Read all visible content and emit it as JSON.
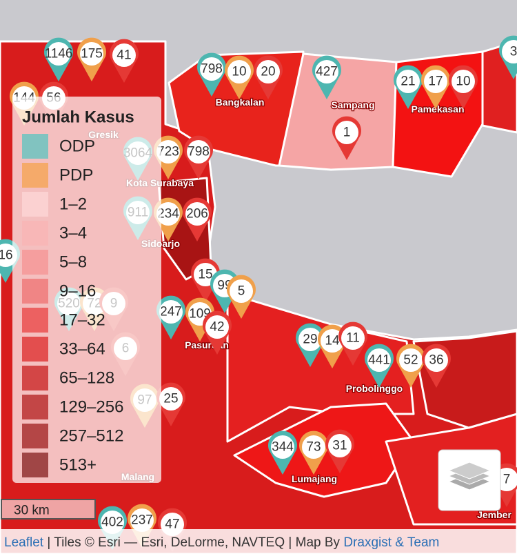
{
  "legend": {
    "title": "Jumlah Kasus",
    "items": [
      {
        "label": "ODP",
        "color": "#6cc3c0"
      },
      {
        "label": "PDP",
        "color": "#f5a65b"
      },
      {
        "label": "1–2",
        "color": "#fcd3d3"
      },
      {
        "label": "3–4",
        "color": "#f8b5b5"
      },
      {
        "label": "5–8",
        "color": "#f49898"
      },
      {
        "label": "9–16",
        "color": "#ef7a7a"
      },
      {
        "label": "17–32",
        "color": "#ea5050"
      },
      {
        "label": "33–64",
        "color": "#df3a3a"
      },
      {
        "label": "65–128",
        "color": "#cc3030"
      },
      {
        "label": "129–256",
        "color": "#ba3030"
      },
      {
        "label": "257–512",
        "color": "#a83030"
      },
      {
        "label": "513+",
        "color": "#903030"
      }
    ]
  },
  "regions": [
    "Bangkalan",
    "Sampang",
    "Pamekasan",
    "Kota Surabaya",
    "Sidoarjo",
    "Pasuruan",
    "Probolinggo",
    "Lumajang",
    "Jember",
    "Malang",
    "Gresik"
  ],
  "markers": [
    {
      "value": "1146",
      "color": "#4db6b0"
    },
    {
      "value": "175",
      "color": "#f0a04b"
    },
    {
      "value": "41",
      "color": "#e53935"
    },
    {
      "value": "798",
      "color": "#4db6b0"
    },
    {
      "value": "10",
      "color": "#f0a04b"
    },
    {
      "value": "20",
      "color": "#e53935"
    },
    {
      "value": "427",
      "color": "#4db6b0"
    },
    {
      "value": "21",
      "color": "#4db6b0"
    },
    {
      "value": "17",
      "color": "#f0a04b"
    },
    {
      "value": "10",
      "color": "#e53935"
    },
    {
      "value": "3",
      "color": "#4db6b0"
    },
    {
      "value": "144",
      "color": "#f0a04b"
    },
    {
      "value": "56",
      "color": "#e53935"
    },
    {
      "value": "1",
      "color": "#e53935"
    },
    {
      "value": "3064",
      "color": "#4db6b0"
    },
    {
      "value": "723",
      "color": "#f0a04b"
    },
    {
      "value": "798",
      "color": "#e53935"
    },
    {
      "value": "911",
      "color": "#4db6b0"
    },
    {
      "value": "234",
      "color": "#f0a04b"
    },
    {
      "value": "206",
      "color": "#e53935"
    },
    {
      "value": "16",
      "color": "#4db6b0"
    },
    {
      "value": "15",
      "color": "#e53935"
    },
    {
      "value": "99",
      "color": "#4db6b0"
    },
    {
      "value": "5",
      "color": "#f0a04b"
    },
    {
      "value": "247",
      "color": "#4db6b0"
    },
    {
      "value": "109",
      "color": "#f0a04b"
    },
    {
      "value": "42",
      "color": "#e53935"
    },
    {
      "value": "520",
      "color": "#4db6b0"
    },
    {
      "value": "72",
      "color": "#f0a04b"
    },
    {
      "value": "9",
      "color": "#e53935"
    },
    {
      "value": "6",
      "color": "#e53935"
    },
    {
      "value": "29",
      "color": "#4db6b0"
    },
    {
      "value": "14",
      "color": "#f0a04b"
    },
    {
      "value": "11",
      "color": "#e53935"
    },
    {
      "value": "441",
      "color": "#4db6b0"
    },
    {
      "value": "52",
      "color": "#f0a04b"
    },
    {
      "value": "36",
      "color": "#e53935"
    },
    {
      "value": "97",
      "color": "#f0a04b"
    },
    {
      "value": "25",
      "color": "#e53935"
    },
    {
      "value": "344",
      "color": "#4db6b0"
    },
    {
      "value": "73",
      "color": "#f0a04b"
    },
    {
      "value": "31",
      "color": "#e53935"
    },
    {
      "value": "402",
      "color": "#4db6b0"
    },
    {
      "value": "237",
      "color": "#f0a04b"
    },
    {
      "value": "47",
      "color": "#e53935"
    },
    {
      "value": "7",
      "color": "#e53935"
    }
  ],
  "scale": "30 km",
  "attribution": {
    "link": "Leaflet",
    "text": " | Tiles © Esri — Esri, DeLorme, NAVTEQ | Map By ",
    "author": "Draxgist & Team"
  }
}
